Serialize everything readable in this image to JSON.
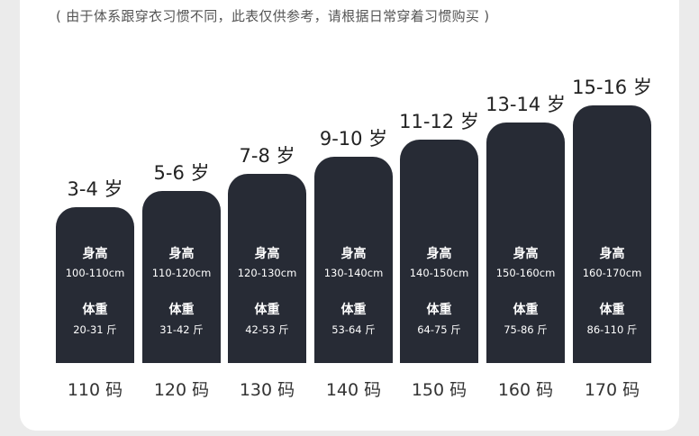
{
  "note": "( 由于体系跟穿衣习惯不同，此表仅供参考，请根据日常穿着习惯购买 )",
  "columns": [
    {
      "age": "3-4 岁",
      "height_label": "身高",
      "height": "100-110cm",
      "weight_label": "体重",
      "weight": "20-31 斤",
      "size": "110 码"
    },
    {
      "age": "5-6 岁",
      "height_label": "身高",
      "height": "110-120cm",
      "weight_label": "体重",
      "weight": "31-42 斤",
      "size": "120 码"
    },
    {
      "age": "7-8 岁",
      "height_label": "身高",
      "height": "120-130cm",
      "weight_label": "体重",
      "weight": "42-53 斤",
      "size": "130 码"
    },
    {
      "age": "9-10 岁",
      "height_label": "身高",
      "height": "130-140cm",
      "weight_label": "体重",
      "weight": "53-64 斤",
      "size": "140 码"
    },
    {
      "age": "11-12 岁",
      "height_label": "身高",
      "height": "140-150cm",
      "weight_label": "体重",
      "weight": "64-75 斤",
      "size": "150 码"
    },
    {
      "age": "13-14 岁",
      "height_label": "身高",
      "height": "150-160cm",
      "weight_label": "体重",
      "weight": "75-86 斤",
      "size": "160 码"
    },
    {
      "age": "15-16 岁",
      "height_label": "身高",
      "height": "160-170cm",
      "weight_label": "体重",
      "weight": "86-110 斤",
      "size": "170 码"
    }
  ],
  "colors": {
    "bar": "#272b35",
    "text": "#222222",
    "background": "#ffffff"
  }
}
